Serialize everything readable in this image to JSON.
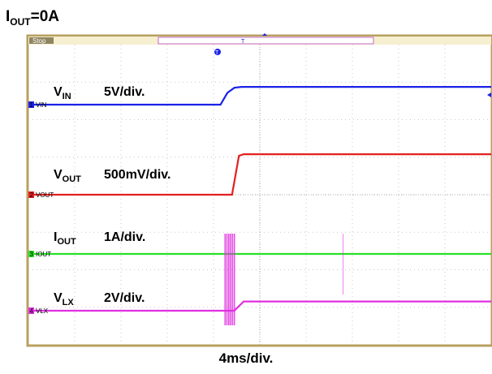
{
  "title": {
    "main": "I",
    "sub": "OUT",
    "rest": "=0A"
  },
  "scope_header": {
    "status": "Stop",
    "trigger_marker": "T"
  },
  "chart_data": {
    "type": "line",
    "title": "IOUT=0A",
    "xlabel": "4ms/div.",
    "x_divisions": 10,
    "y_divisions": 8,
    "x_unit": "div",
    "grid": true,
    "series": [
      {
        "name": "VIN",
        "label_main": "V",
        "label_sub": "IN",
        "scale": "5V/div.",
        "tag": "VIN",
        "channel_number": "1",
        "color": "#1a22e6",
        "baseline_div": 3.8,
        "x": [
          0,
          4.15,
          4.3,
          4.45,
          4.6,
          10
        ],
        "y": [
          0,
          0,
          0.7,
          1.0,
          1.05,
          1.05
        ]
      },
      {
        "name": "VOUT",
        "label_main": "V",
        "label_sub": "OUT",
        "scale": "500mV/div.",
        "tag": "VOUT",
        "channel_number": "2",
        "color": "#e32020",
        "baseline_div": 1.1,
        "x": [
          0,
          4.4,
          4.55,
          4.65,
          10
        ],
        "y": [
          0,
          0,
          2.3,
          2.4,
          2.4
        ]
      },
      {
        "name": "IOUT",
        "label_main": "I",
        "label_sub": "OUT",
        "scale": "1A/div.",
        "tag": "IOUT",
        "channel_number": "3",
        "color": "#28e028",
        "baseline_div": 3.95,
        "x": [
          0,
          10
        ],
        "y": [
          0,
          0
        ]
      },
      {
        "name": "VLX",
        "label_main": "V",
        "label_sub": "LX",
        "scale": "2V/div.",
        "tag": "VLX",
        "channel_number": "4",
        "color": "#e030e0",
        "baseline_div": 4.05,
        "x": [
          0,
          4.45,
          4.65,
          10
        ],
        "y": [
          0,
          0,
          0.55,
          0.55
        ]
      }
    ]
  }
}
